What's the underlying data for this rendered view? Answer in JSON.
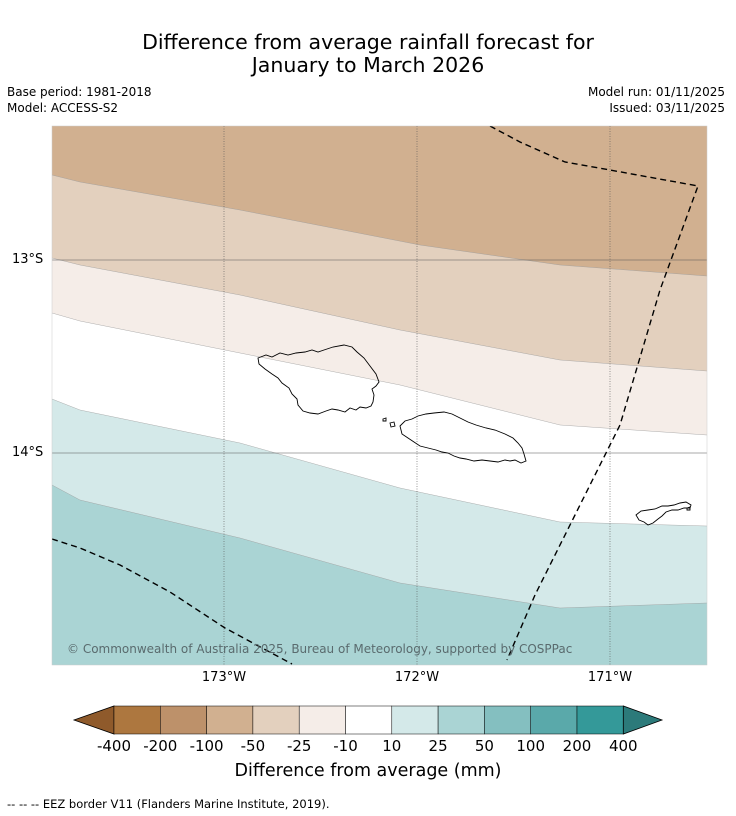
{
  "title_line1": "Difference from average rainfall forecast for",
  "title_line2": "January to March 2026",
  "meta_left": {
    "base_period": "Base period: 1981-2018",
    "model": "Model: ACCESS-S2"
  },
  "meta_right": {
    "model_run": "Model run: 01/11/2025",
    "issued": "Issued: 03/11/2025"
  },
  "lat_labels": [
    "13°S",
    "14°S"
  ],
  "lon_labels": [
    "173°W",
    "172°W",
    "171°W"
  ],
  "copyright": "© Commonwealth of Australia 2025, Bureau of Meteorology, supported by COSPPac",
  "colorbar": {
    "title": "Difference from average (mm)",
    "ticks": [
      "-400",
      "-200",
      "-100",
      "-50",
      "-25",
      "-10",
      "10",
      "25",
      "50",
      "100",
      "200",
      "400"
    ],
    "colors": [
      "#8f5a2b",
      "#ad773f",
      "#bd916a",
      "#d1b090",
      "#e3d0be",
      "#f5ede8",
      "#ffffff",
      "#d4e9e9",
      "#aad4d4",
      "#84bfc0",
      "#5aa9aa",
      "#349999",
      "#2c7a7a"
    ]
  },
  "footer": "-- -- -- EEZ border V11 (Flanders Marine Institute, 2019)."
}
